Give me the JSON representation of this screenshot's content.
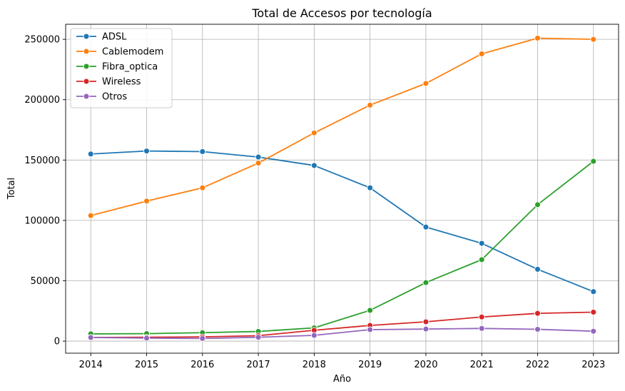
{
  "chart_data": {
    "type": "line",
    "title": "Total de Accesos por tecnología",
    "xlabel": "Año",
    "ylabel": "Total",
    "x": [
      2014,
      2015,
      2016,
      2017,
      2018,
      2019,
      2020,
      2021,
      2022,
      2023
    ],
    "xlim": [
      2013.55,
      2023.45
    ],
    "ylim": [
      -10000,
      262500
    ],
    "yticks": [
      0,
      50000,
      100000,
      150000,
      200000,
      250000
    ],
    "grid": true,
    "legend_position": "top-left",
    "series": [
      {
        "name": "ADSL",
        "color": "#1f77b4",
        "values": [
          155000,
          157500,
          157000,
          152500,
          145500,
          127000,
          94500,
          81000,
          59500,
          41000
        ]
      },
      {
        "name": "Cablemodem",
        "color": "#ff7f0e",
        "values": [
          104000,
          116000,
          127000,
          147500,
          172500,
          195500,
          213500,
          238000,
          251000,
          250000
        ]
      },
      {
        "name": "Fibra_optica",
        "color": "#2ca02c",
        "values": [
          6000,
          6200,
          7000,
          8000,
          11000,
          25500,
          48500,
          67500,
          113000,
          149000
        ]
      },
      {
        "name": "Wireless",
        "color": "#d62728",
        "values": [
          3000,
          3200,
          3500,
          4500,
          9000,
          13000,
          16000,
          20000,
          23000,
          24000
        ]
      },
      {
        "name": "Otros",
        "color": "#9467bd",
        "values": [
          3000,
          2500,
          2200,
          3200,
          4800,
          9500,
          10000,
          10500,
          9800,
          8200
        ]
      }
    ]
  }
}
